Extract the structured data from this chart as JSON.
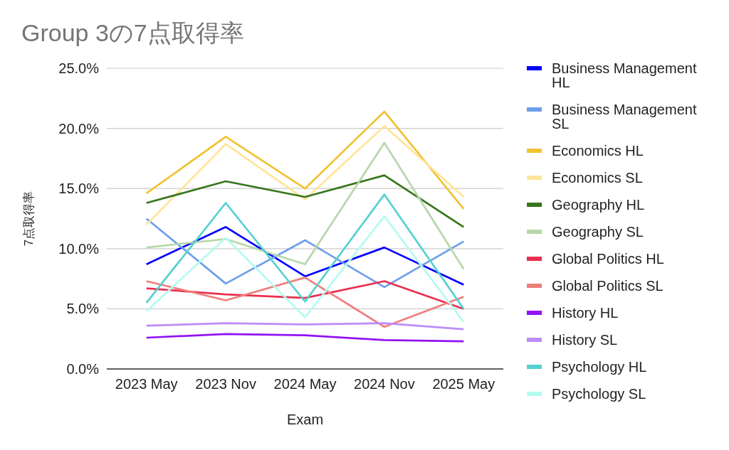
{
  "chart_data": {
    "type": "line",
    "title": "Group 3の7点取得率",
    "xlabel": "Exam",
    "ylabel": "7点取得率",
    "categories": [
      "2023 May",
      "2023 Nov",
      "2024 May",
      "2024 Nov",
      "2025 May"
    ],
    "ylim": [
      0,
      25
    ],
    "yticks": [
      {
        "value": 0,
        "label": "0.0%"
      },
      {
        "value": 5,
        "label": "5.0%"
      },
      {
        "value": 10,
        "label": "10.0%"
      },
      {
        "value": 15,
        "label": "15.0%"
      },
      {
        "value": 20,
        "label": "20.0%"
      },
      {
        "value": 25,
        "label": "25.0%"
      }
    ],
    "grid": "y",
    "legend": "right",
    "series": [
      {
        "name": "Business Management HL",
        "color": "#0000ff",
        "values": [
          8.7,
          11.8,
          7.7,
          10.1,
          7.0
        ]
      },
      {
        "name": "Business Management SL",
        "color": "#6d9eeb",
        "values": [
          12.5,
          7.1,
          10.7,
          6.8,
          10.6
        ]
      },
      {
        "name": "Economics HL",
        "color": "#f1c232",
        "values": [
          14.6,
          19.3,
          15.0,
          21.4,
          13.3
        ]
      },
      {
        "name": "Economics SL",
        "color": "#ffe599",
        "values": [
          12.0,
          18.7,
          14.1,
          20.2,
          14.3
        ]
      },
      {
        "name": "Geography HL",
        "color": "#38761d",
        "values": [
          13.8,
          15.6,
          14.3,
          16.1,
          11.8
        ]
      },
      {
        "name": "Geography SL",
        "color": "#b6d7a8",
        "values": [
          10.1,
          10.8,
          8.7,
          18.8,
          8.3
        ]
      },
      {
        "name": "Global Politics HL",
        "color": "#e8304f",
        "values": [
          6.7,
          6.2,
          5.9,
          7.3,
          5.0
        ]
      },
      {
        "name": "Global Politics SL",
        "color": "#ef7f7a",
        "values": [
          7.3,
          5.7,
          7.6,
          3.5,
          6.0
        ]
      },
      {
        "name": "History HL",
        "color": "#9212f5",
        "values": [
          2.6,
          2.9,
          2.8,
          2.4,
          2.3
        ]
      },
      {
        "name": "History SL",
        "color": "#bd8cf7",
        "values": [
          3.6,
          3.8,
          3.7,
          3.8,
          3.3
        ]
      },
      {
        "name": "Psychology HL",
        "color": "#55d0d0",
        "values": [
          5.5,
          13.8,
          5.6,
          14.5,
          5.0
        ]
      },
      {
        "name": "Psychology SL",
        "color": "#b3fbf0",
        "values": [
          4.8,
          10.9,
          4.3,
          12.7,
          3.9
        ]
      }
    ]
  }
}
